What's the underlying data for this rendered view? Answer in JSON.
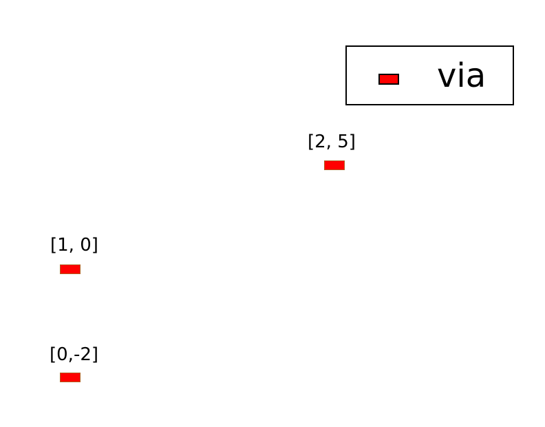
{
  "legend": {
    "label": "via",
    "swatch_color": "#ff0000"
  },
  "vias": [
    {
      "label": "[2, 5]",
      "color": "#ff0000"
    },
    {
      "label": "[1, 0]",
      "color": "#ff0000"
    },
    {
      "label": "[0,-2]",
      "color": "#ff0000"
    }
  ]
}
